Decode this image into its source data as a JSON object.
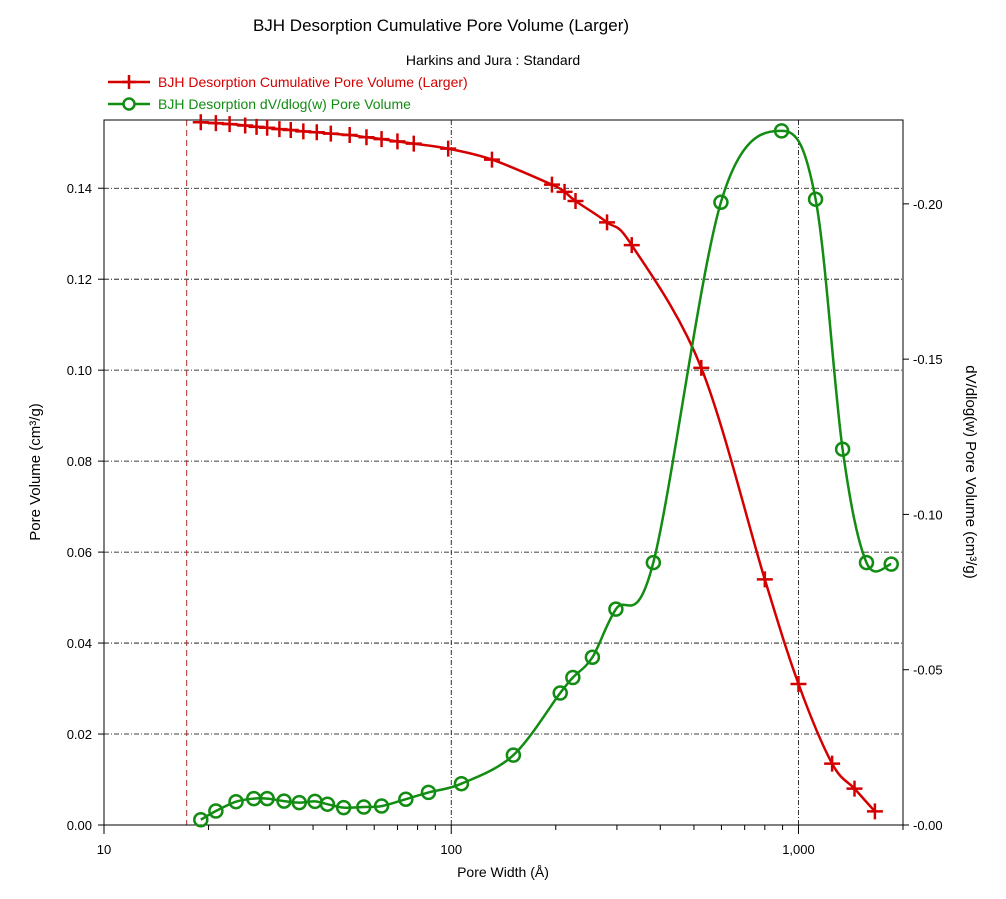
{
  "chart_data": {
    "type": "line",
    "title": "BJH Desorption Cumulative Pore Volume (Larger)",
    "subtitle": "Harkins and Jura : Standard",
    "xlabel": "Pore Width (Å)",
    "ylabel": "Pore Volume (cm³/g)",
    "y2label": "dV/dlog(w) Pore Volume (cm³/g)",
    "xscale": "log",
    "xlim": [
      10,
      2000
    ],
    "ylim": [
      0,
      0.155
    ],
    "y2lim": [
      0,
      0.227
    ],
    "xticks": [
      {
        "value": 10,
        "label": "10"
      },
      {
        "value": 100,
        "label": "100"
      },
      {
        "value": 1000,
        "label": "1,000"
      }
    ],
    "yticks": [
      {
        "value": 0.0,
        "label": "0.00"
      },
      {
        "value": 0.02,
        "label": "0.02"
      },
      {
        "value": 0.04,
        "label": "0.04"
      },
      {
        "value": 0.06,
        "label": "0.06"
      },
      {
        "value": 0.08,
        "label": "0.08"
      },
      {
        "value": 0.1,
        "label": "0.10"
      },
      {
        "value": 0.12,
        "label": "0.12"
      },
      {
        "value": 0.14,
        "label": "0.14"
      }
    ],
    "y2ticks": [
      {
        "value": 0.0,
        "label": "-0.00"
      },
      {
        "value": 0.05,
        "label": "-0.05"
      },
      {
        "value": 0.1,
        "label": "-0.10"
      },
      {
        "value": 0.15,
        "label": "-0.15"
      },
      {
        "value": 0.2,
        "label": "-0.20"
      }
    ],
    "grid": true,
    "legend_position": "top-left",
    "vline_x": 17.3,
    "series": [
      {
        "name": "BJH Desorption Cumulative Pore Volume (Larger)",
        "axis": "left",
        "color": "#d40000",
        "marker": "plus",
        "x": [
          19,
          21,
          23,
          25.5,
          27.5,
          29.5,
          32,
          34.5,
          37.5,
          41,
          45,
          51,
          57,
          63,
          70,
          78,
          98,
          131,
          195,
          212,
          228,
          281,
          331,
          525,
          800,
          1000,
          1250,
          1450,
          1660
        ],
        "y": [
          0.1545,
          0.1543,
          0.1541,
          0.1538,
          0.1535,
          0.1533,
          0.153,
          0.1528,
          0.1525,
          0.1523,
          0.152,
          0.1517,
          0.1512,
          0.1508,
          0.1503,
          0.1498,
          0.1487,
          0.1463,
          0.1408,
          0.1392,
          0.1372,
          0.1325,
          0.1275,
          0.1005,
          0.054,
          0.031,
          0.0135,
          0.008,
          0.003
        ]
      },
      {
        "name": "BJH Desorption dV/dlog(w) Pore Volume",
        "axis": "right",
        "color": "#128c12",
        "marker": "circle",
        "x": [
          19,
          21,
          24,
          27,
          29.5,
          33,
          36.5,
          40.5,
          44,
          49,
          56,
          63,
          74,
          86,
          107,
          151,
          206,
          224,
          255,
          298,
          382,
          598,
          894,
          1120,
          1340,
          1570,
          1850
        ],
        "y": [
          0.0017,
          0.0045,
          0.0075,
          0.0085,
          0.0085,
          0.0077,
          0.0072,
          0.0076,
          0.0067,
          0.0056,
          0.0058,
          0.0061,
          0.0083,
          0.0105,
          0.0133,
          0.0225,
          0.0425,
          0.0475,
          0.054,
          0.0695,
          0.0845,
          0.2005,
          0.2235,
          0.2015,
          0.121,
          0.0845,
          0.084
        ]
      }
    ]
  }
}
